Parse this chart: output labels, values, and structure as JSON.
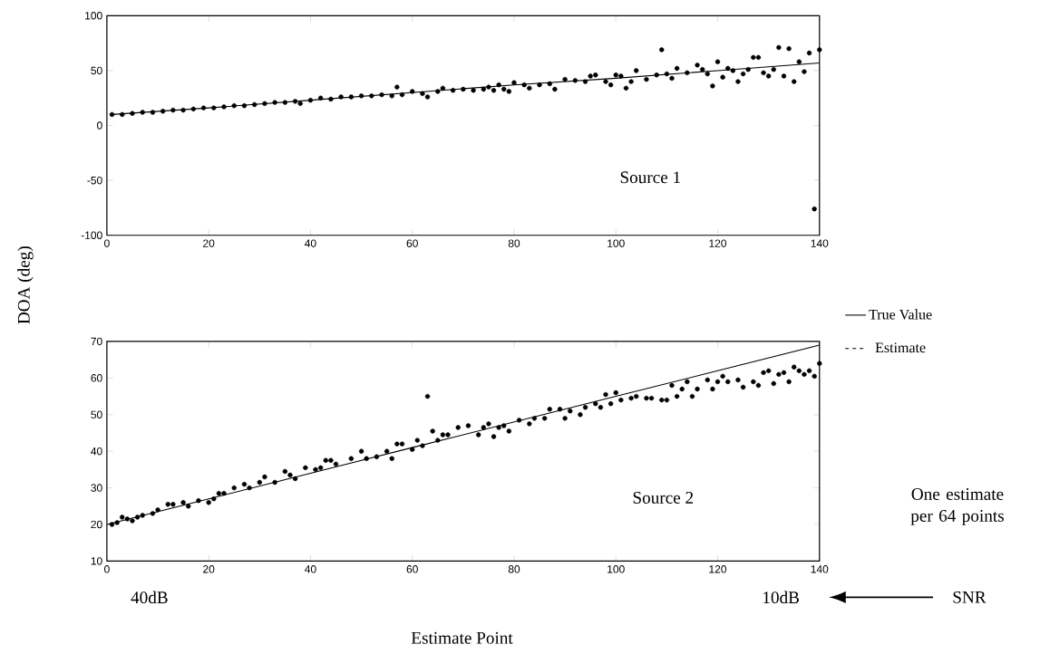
{
  "chart_data": [
    {
      "type": "scatter",
      "ylabel": "DOA (deg)",
      "xlim": [
        0,
        140
      ],
      "ylim": [
        -100,
        100
      ],
      "xticks": [
        0,
        20,
        40,
        60,
        80,
        100,
        120,
        140
      ],
      "yticks": [
        -100,
        -50,
        0,
        50,
        100
      ],
      "marker": "circle",
      "grid": false,
      "legend": false,
      "annotations": [
        "Source 1"
      ],
      "series": [
        {
          "type": "line",
          "marker": "none",
          "color": "#000000",
          "x": [
            1,
            20,
            40,
            60,
            80,
            100,
            120,
            140
          ],
          "values": [
            10,
            16,
            23,
            30,
            37,
            43,
            50,
            57
          ]
        },
        {
          "color": "#000000",
          "x": [
            1,
            3,
            5,
            7,
            9,
            11,
            13,
            15,
            17,
            19,
            21,
            23,
            25,
            27,
            29,
            31,
            33,
            35,
            37,
            38,
            40,
            42,
            44,
            46,
            48,
            50,
            52,
            54,
            56,
            57,
            58,
            60,
            62,
            63,
            65,
            66,
            68,
            70,
            72,
            74,
            75,
            76,
            77,
            78,
            79,
            80,
            82,
            83,
            85,
            87,
            88,
            90,
            92,
            94,
            95,
            96,
            98,
            99,
            100,
            101,
            102,
            103,
            104,
            106,
            108,
            109,
            110,
            111,
            112,
            114,
            116,
            117,
            118,
            119,
            120,
            121,
            122,
            123,
            124,
            125,
            126,
            127,
            128,
            129,
            130,
            131,
            132,
            133,
            134,
            135,
            136,
            137,
            138,
            139,
            140
          ],
          "values": [
            10,
            10,
            11,
            12,
            12,
            13,
            14,
            14,
            15,
            16,
            16,
            17,
            18,
            18,
            19,
            20,
            21,
            21,
            22,
            20,
            23,
            25,
            24,
            26,
            26,
            27,
            27,
            28,
            27,
            35,
            28,
            31,
            29,
            26,
            31,
            34,
            32,
            33,
            32,
            33,
            35,
            32,
            37,
            33,
            31,
            39,
            37,
            34,
            37,
            38,
            33,
            42,
            41,
            40,
            45,
            46,
            40,
            37,
            46,
            45,
            34,
            40,
            50,
            42,
            46,
            69,
            47,
            43,
            52,
            48,
            55,
            51,
            47,
            36,
            58,
            44,
            52,
            50,
            40,
            47,
            51,
            62,
            62,
            48,
            45,
            51,
            71,
            45,
            70,
            40,
            58,
            49,
            66,
            -76,
            69
          ]
        }
      ]
    },
    {
      "type": "scatter",
      "xlabel": "Estimate Point",
      "xlim": [
        0,
        140
      ],
      "ylim": [
        10,
        70
      ],
      "xticks": [
        0,
        20,
        40,
        60,
        80,
        100,
        120,
        140
      ],
      "yticks": [
        10,
        20,
        30,
        40,
        50,
        60,
        70
      ],
      "marker": "circle",
      "grid": false,
      "legend": "right",
      "annotations": [
        "Source 2",
        "40dB",
        "10dB",
        "SNR",
        "One estimate per 64 points"
      ],
      "series": [
        {
          "type": "line",
          "marker": "none",
          "name": "True Value",
          "color": "#000000",
          "x": [
            0,
            20,
            40,
            60,
            80,
            100,
            120,
            140
          ],
          "values": [
            20,
            27,
            34,
            41,
            48,
            55,
            62,
            69
          ]
        },
        {
          "name": "Estimate",
          "color": "#000000",
          "x": [
            1,
            2,
            3,
            4,
            5,
            6,
            7,
            9,
            10,
            12,
            13,
            15,
            16,
            18,
            20,
            21,
            22,
            23,
            25,
            27,
            28,
            30,
            31,
            33,
            35,
            36,
            37,
            39,
            41,
            42,
            43,
            44,
            45,
            48,
            50,
            51,
            53,
            55,
            56,
            57,
            58,
            60,
            61,
            62,
            63,
            64,
            65,
            66,
            67,
            69,
            71,
            73,
            74,
            75,
            76,
            77,
            78,
            79,
            81,
            83,
            84,
            86,
            87,
            89,
            90,
            91,
            93,
            94,
            96,
            97,
            98,
            99,
            100,
            101,
            103,
            104,
            106,
            107,
            109,
            110,
            111,
            112,
            113,
            114,
            115,
            116,
            118,
            119,
            120,
            121,
            122,
            124,
            125,
            127,
            128,
            129,
            130,
            131,
            132,
            133,
            134,
            135,
            136,
            137,
            138,
            139,
            140
          ],
          "values": [
            20,
            20.5,
            22,
            21.5,
            21,
            22,
            22.5,
            23,
            24,
            25.5,
            25.5,
            26,
            25,
            26.5,
            26,
            27,
            28.5,
            28.5,
            30,
            31,
            30,
            31.5,
            33,
            31.5,
            34.5,
            33.5,
            32.5,
            35.5,
            35,
            35.5,
            37.5,
            37.5,
            36.5,
            38,
            40,
            38,
            38.5,
            40,
            38,
            42,
            42,
            40.5,
            43,
            41.5,
            55,
            45.5,
            43,
            44.5,
            44.5,
            46.5,
            47,
            44.5,
            46.5,
            47.5,
            44,
            46.5,
            47,
            45.5,
            48.5,
            47.5,
            49,
            49,
            51.5,
            51.5,
            49,
            51,
            50,
            52,
            53,
            52,
            55.5,
            53,
            56,
            54,
            54.5,
            55,
            54.5,
            54.5,
            54,
            54,
            58,
            55,
            57,
            59,
            55,
            57,
            59.5,
            57,
            59,
            60.5,
            59,
            59.5,
            57.5,
            59,
            58,
            61.5,
            62,
            58.5,
            61,
            61.5,
            59,
            63,
            62,
            61,
            62,
            60.5,
            64
          ]
        }
      ]
    }
  ]
}
